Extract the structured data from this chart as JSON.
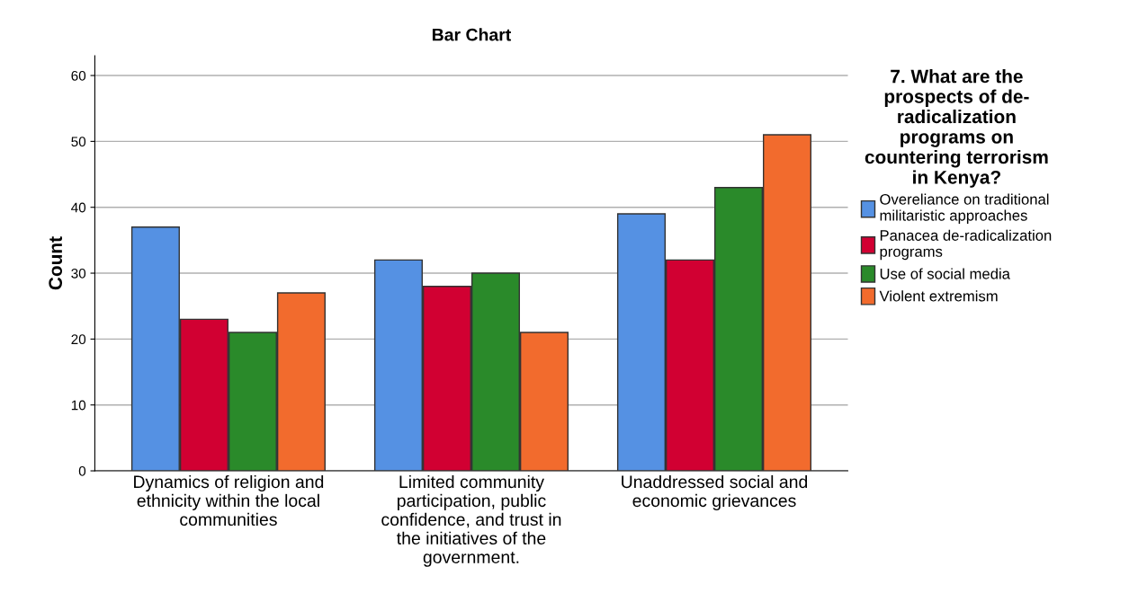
{
  "chart_data": {
    "type": "bar",
    "title": "Bar Chart",
    "ylabel": "Count",
    "categories": [
      "Dynamics of religion and\nethnicity within the local\ncommunities",
      "Limited community\nparticipation, public\nconfidence, and trust in\nthe initiatives of the\ngovernment.",
      "Unaddressed social and\neconomic grievances"
    ],
    "series": [
      {
        "name": "Overeliance on traditional\nmilitaristic approaches",
        "color": "#5591e3",
        "values": [
          37,
          32,
          39
        ]
      },
      {
        "name": "Panacea de-radicalization\nprograms",
        "color": "#d10032",
        "values": [
          23,
          28,
          32
        ]
      },
      {
        "name": "Use of social media",
        "color": "#2a8a2a",
        "values": [
          21,
          30,
          43
        ]
      },
      {
        "name": "Violent extremism",
        "color": "#f26b2d",
        "values": [
          27,
          21,
          51
        ]
      }
    ],
    "legend_title": "7. What are the\nprospects of de-\nradicalization\nprograms on\ncountering terrorism\nin Kenya?",
    "ylim": [
      0,
      63
    ],
    "yticks": [
      0,
      10,
      20,
      30,
      40,
      50,
      60
    ],
    "grid": "y",
    "legend": "right"
  }
}
